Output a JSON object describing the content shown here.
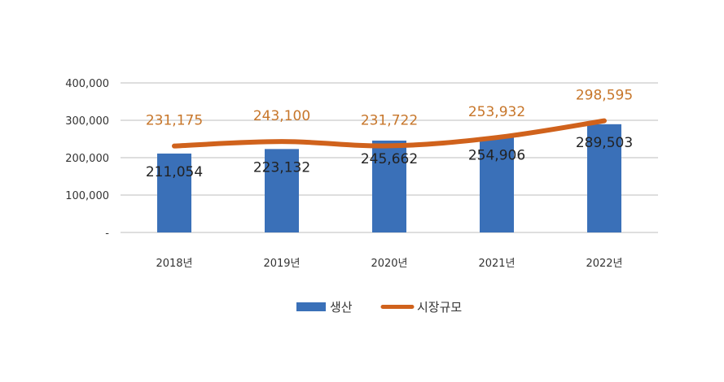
{
  "chart_data": {
    "type": "bar",
    "categories": [
      "2018년",
      "2019년",
      "2020년",
      "2021년",
      "2022년"
    ],
    "y_ticks": [
      "-",
      "100,000",
      "200,000",
      "300,000",
      "400,000"
    ],
    "ylim": [
      0,
      400000
    ],
    "grid": true,
    "legend_position": "bottom",
    "series": [
      {
        "name": "생산",
        "type": "bar",
        "color": "#3a70b8",
        "values": [
          211054,
          223132,
          245662,
          254906,
          289503
        ],
        "labels": [
          "211,054",
          "223,132",
          "245,662",
          "254,906",
          "289,503"
        ]
      },
      {
        "name": "시장규모",
        "type": "line",
        "color": "#d0621c",
        "label_color": "#c7762a",
        "values": [
          231175,
          243100,
          231722,
          253932,
          298595
        ],
        "labels": [
          "231,175",
          "243,100",
          "231,722",
          "253,932",
          "298,595"
        ]
      }
    ]
  }
}
